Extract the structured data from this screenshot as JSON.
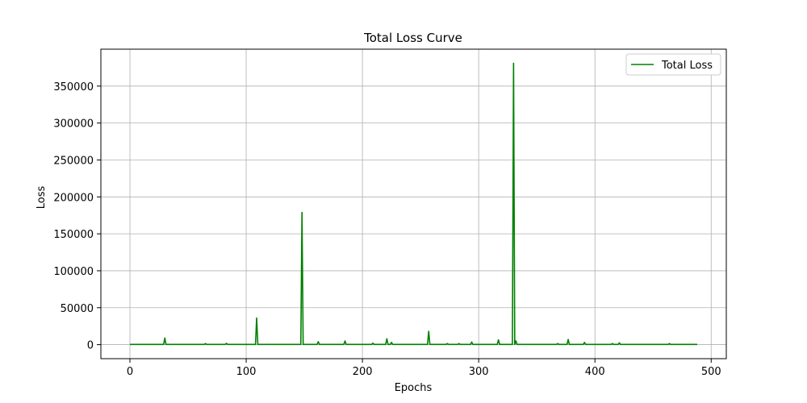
{
  "chart_data": {
    "type": "line",
    "title": "Total Loss Curve",
    "xlabel": "Epochs",
    "ylabel": "Loss",
    "xlim": [
      -25,
      513
    ],
    "ylim": [
      -19000,
      400000
    ],
    "xticks": [
      0,
      100,
      200,
      300,
      400,
      500
    ],
    "yticks": [
      0,
      50000,
      100000,
      150000,
      200000,
      250000,
      300000,
      350000
    ],
    "grid": true,
    "legend": {
      "placement": "upper right"
    },
    "series": [
      {
        "name": "Total Loss",
        "color": "#008000",
        "x_start": 0,
        "x_end": 488,
        "baseline": 300,
        "spikes": [
          [
            30,
            9000
          ],
          [
            65,
            1500
          ],
          [
            83,
            1800
          ],
          [
            109,
            36000
          ],
          [
            148,
            179000
          ],
          [
            162,
            4000
          ],
          [
            185,
            5000
          ],
          [
            209,
            2000
          ],
          [
            221,
            8000
          ],
          [
            225,
            3000
          ],
          [
            257,
            18000
          ],
          [
            273,
            1500
          ],
          [
            283,
            1500
          ],
          [
            294,
            3500
          ],
          [
            317,
            6500
          ],
          [
            330,
            381000
          ],
          [
            332,
            5000
          ],
          [
            368,
            1500
          ],
          [
            377,
            7000
          ],
          [
            391,
            3000
          ],
          [
            415,
            1500
          ],
          [
            421,
            2500
          ],
          [
            464,
            1500
          ]
        ]
      }
    ]
  }
}
